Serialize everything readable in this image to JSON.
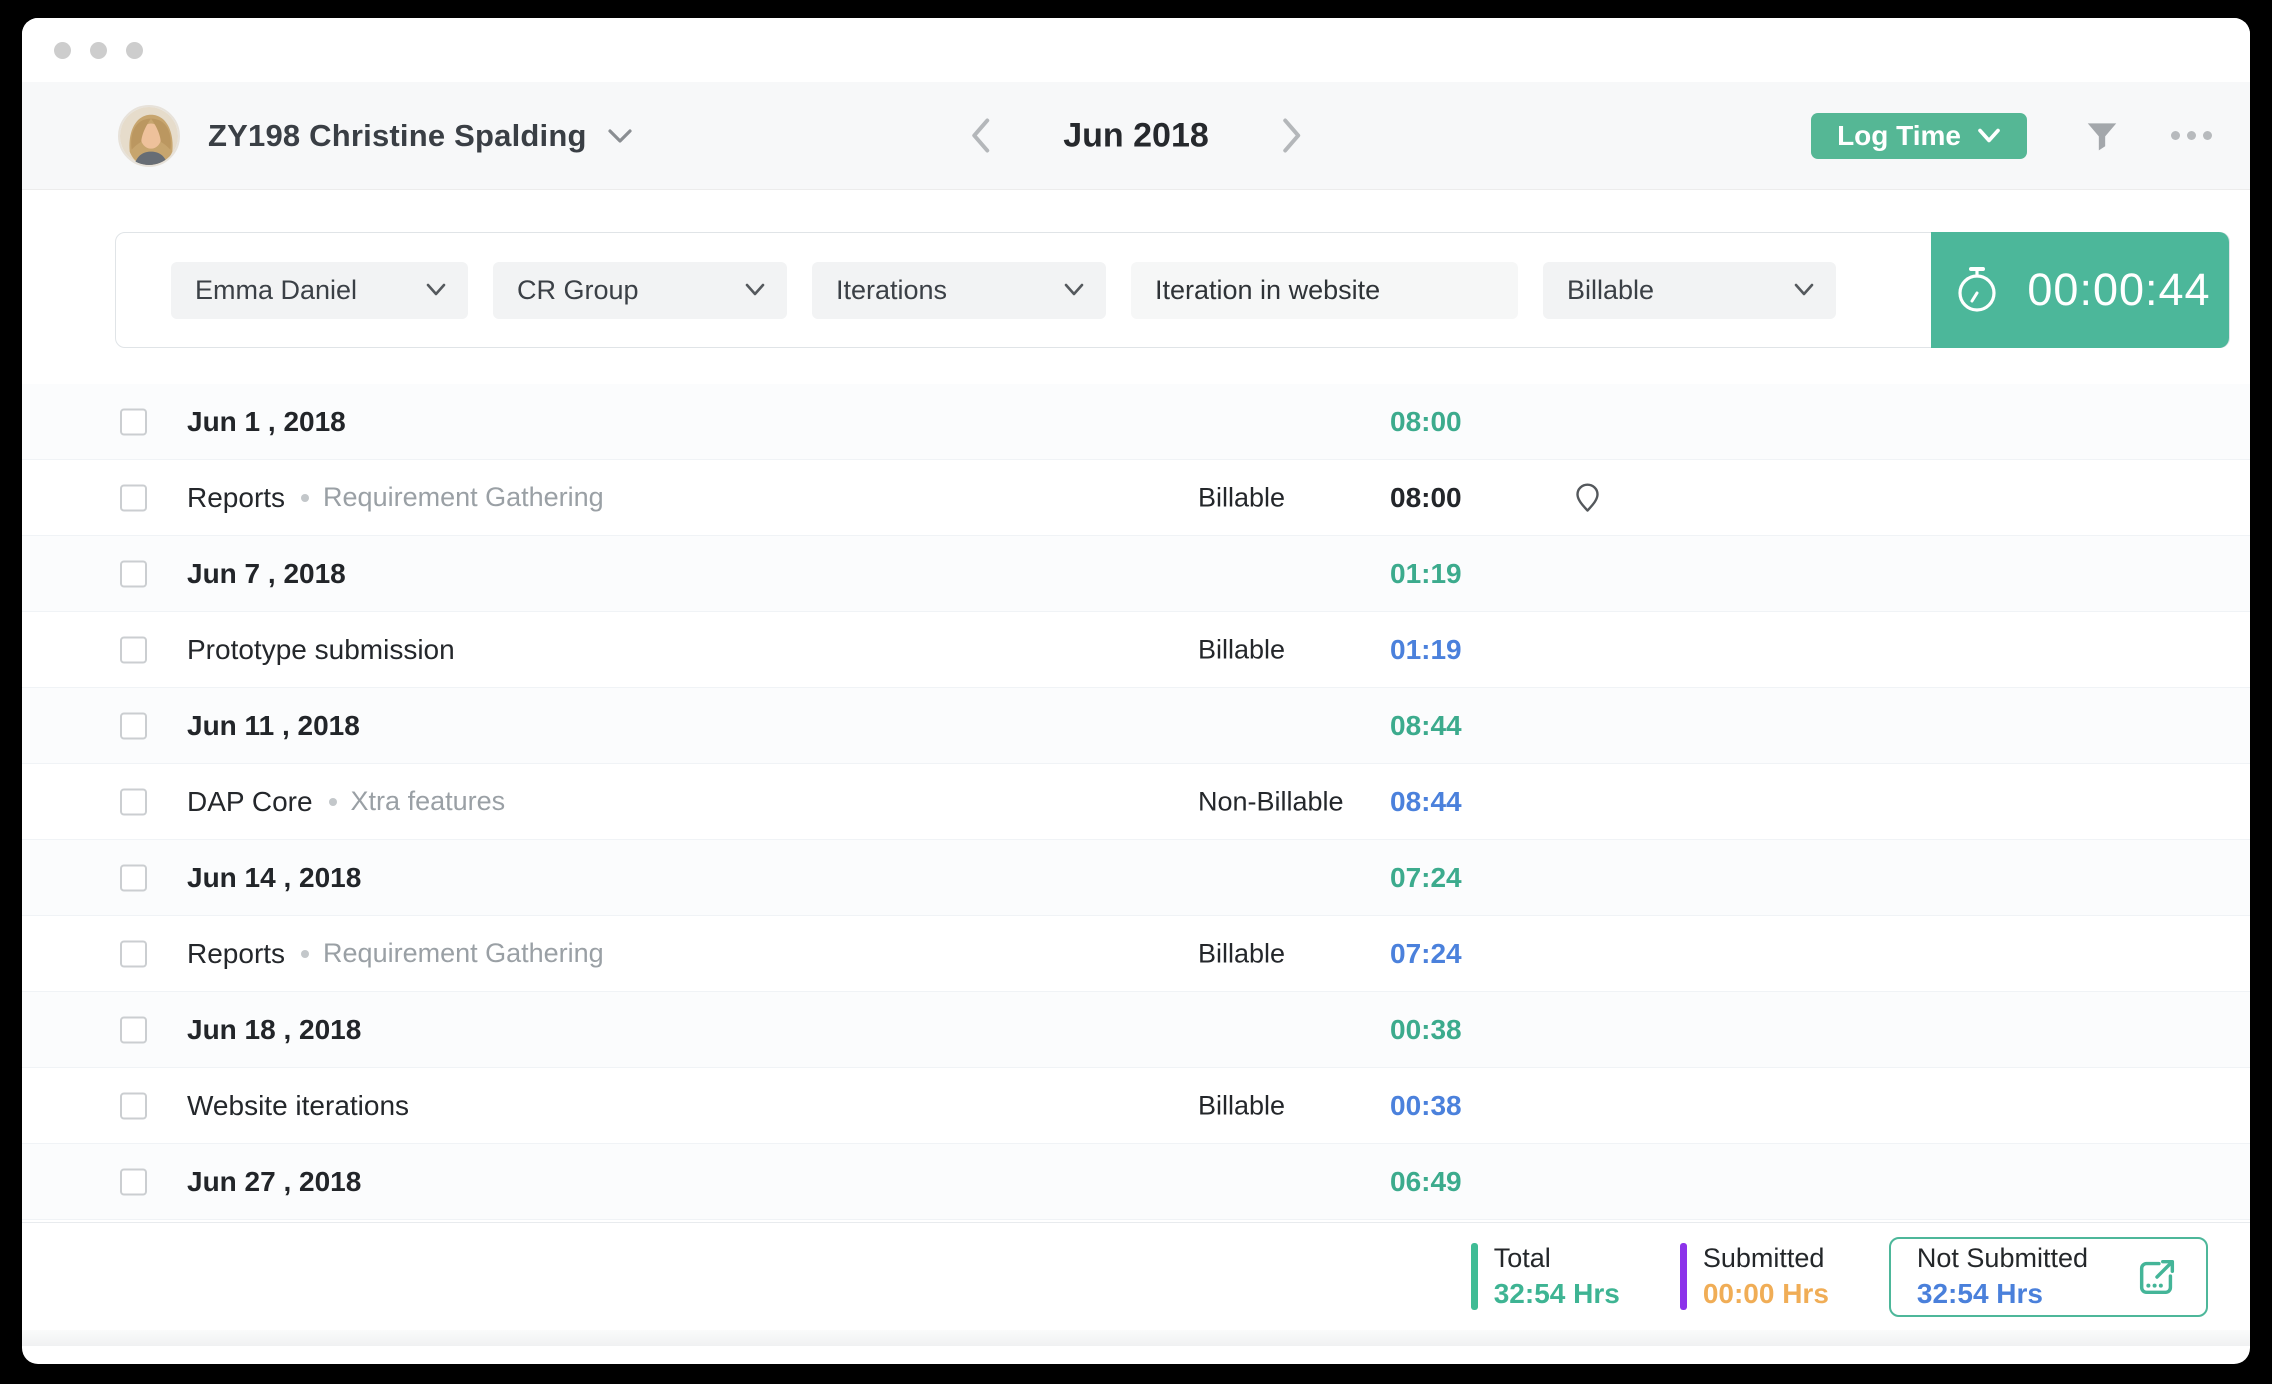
{
  "header": {
    "user_name": "ZY198 Christine Spalding",
    "period": "Jun 2018",
    "log_time_label": "Log Time"
  },
  "filter_bar": {
    "assignee": "Emma Daniel",
    "group": "CR Group",
    "task": "Iterations",
    "description": "Iteration in website",
    "billing_type": "Billable",
    "timer_value": "00:00:44"
  },
  "rows": [
    {
      "kind": "date",
      "label": "Jun 1 , 2018",
      "time": "08:00",
      "time_style": "green"
    },
    {
      "kind": "entry",
      "name": "Reports",
      "subtitle": "Requirement Gathering",
      "billing": "Billable",
      "time": "08:00",
      "time_style": "dark",
      "location": true
    },
    {
      "kind": "date",
      "label": "Jun 7 , 2018",
      "time": "01:19",
      "time_style": "green"
    },
    {
      "kind": "entry",
      "name": "Prototype submission",
      "subtitle": "",
      "billing": "Billable",
      "time": "01:19",
      "time_style": "blue",
      "location": false
    },
    {
      "kind": "date",
      "label": "Jun 11 , 2018",
      "time": "08:44",
      "time_style": "green"
    },
    {
      "kind": "entry",
      "name": "DAP Core",
      "subtitle": "Xtra features",
      "billing": "Non-Billable",
      "time": "08:44",
      "time_style": "blue",
      "location": false
    },
    {
      "kind": "date",
      "label": "Jun 14 , 2018",
      "time": "07:24",
      "time_style": "green"
    },
    {
      "kind": "entry",
      "name": "Reports",
      "subtitle": "Requirement Gathering",
      "billing": "Billable",
      "time": "07:24",
      "time_style": "blue",
      "location": false
    },
    {
      "kind": "date",
      "label": "Jun 18 , 2018",
      "time": "00:38",
      "time_style": "green"
    },
    {
      "kind": "entry",
      "name": "Website iterations",
      "subtitle": "",
      "billing": "Billable",
      "time": "00:38",
      "time_style": "blue",
      "location": false
    },
    {
      "kind": "date",
      "label": "Jun 27 , 2018",
      "time": "06:49",
      "time_style": "green"
    }
  ],
  "footer": {
    "total_label": "Total",
    "total_value": "32:54 Hrs",
    "submitted_label": "Submitted",
    "submitted_value": "00:00 Hrs",
    "not_submitted_label": "Not Submitted",
    "not_submitted_value": "32:54 Hrs"
  },
  "icons": {
    "window_dots": "three-gray-circles",
    "user_caret": "chevron-down-icon",
    "prev": "chevron-left-icon",
    "next": "chevron-right-icon",
    "log_time_caret": "chevron-down-icon",
    "filter": "funnel-icon",
    "more": "ellipsis-icon",
    "timer": "stopwatch-icon",
    "location": "map-pin-icon",
    "export": "submit-export-icon"
  },
  "colors": {
    "accent_green": "#55b795",
    "timer_green": "#4cb79a",
    "time_green": "#3cab8d",
    "time_blue": "#4b81dc",
    "submitted_purple": "#8c33ea",
    "submitted_orange": "#f0ad56",
    "not_submitted_blue": "#4a80db"
  }
}
